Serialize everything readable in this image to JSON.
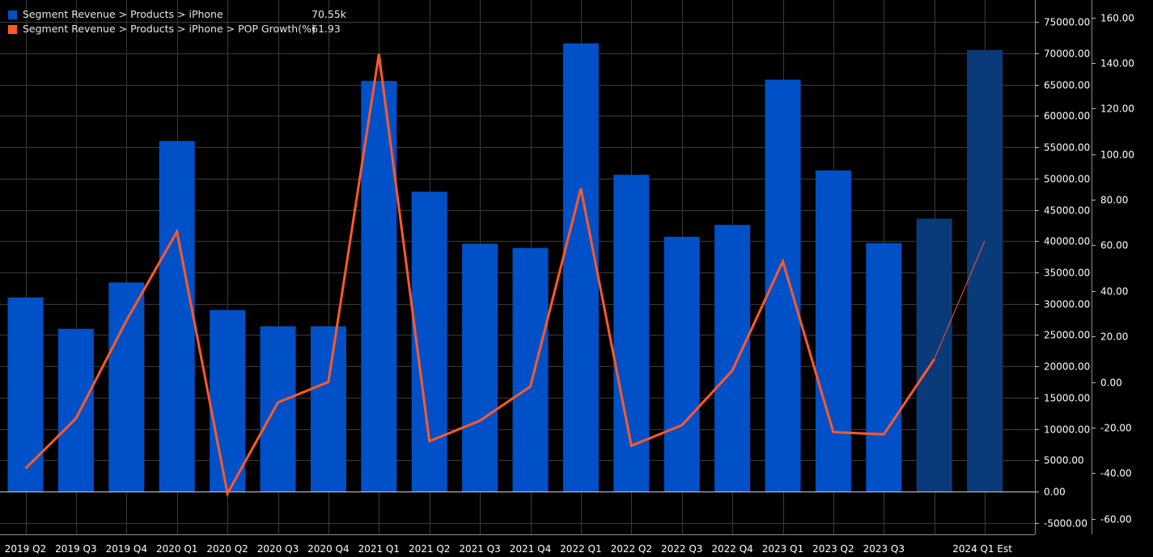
{
  "legend": {
    "items": [
      {
        "label": "Segment Revenue > Products > iPhone",
        "value": "70.55k",
        "color": "#0050c8"
      },
      {
        "label": "Segment Revenue > Products > iPhone > POP Growth(%)",
        "value": "61.93",
        "color": "#ff5a28"
      }
    ]
  },
  "chart_data": {
    "type": "bar",
    "categories": [
      "2019 Q2",
      "2019 Q3",
      "2019 Q4",
      "2020 Q1",
      "2020 Q2",
      "2020 Q3",
      "2020 Q4",
      "2021 Q1",
      "2021 Q2",
      "2021 Q3",
      "2021 Q4",
      "2022 Q1",
      "2022 Q2",
      "2022 Q3",
      "2022 Q4",
      "2023 Q1",
      "2023 Q2",
      "2023 Q3",
      "",
      "2024 Q1 Est"
    ],
    "series": [
      {
        "name": "Segment Revenue > Products > iPhone",
        "type": "bar",
        "axis": "left",
        "color": "#0050c8",
        "estimate_color": "#0a3a7a",
        "estimate_from_index": 18,
        "values": [
          31000,
          26000,
          33400,
          56000,
          29000,
          26400,
          26400,
          65600,
          47900,
          39600,
          38900,
          71600,
          50600,
          40700,
          42600,
          65800,
          51300,
          39700,
          43600,
          70550
        ]
      },
      {
        "name": "Segment Revenue > Products > iPhone > POP Growth(%)",
        "type": "line",
        "axis": "right",
        "color": "#ff5a28",
        "estimate_from_index": 18,
        "values": [
          -38,
          -16,
          27,
          66,
          -49,
          -9,
          0,
          144,
          -26,
          -17,
          -2,
          85,
          -28,
          -19,
          5,
          53,
          -22,
          -23,
          10,
          61.93
        ]
      }
    ],
    "y_left": {
      "ticks": [
        "75000.00",
        "70000.00",
        "65000.00",
        "60000.00",
        "55000.00",
        "50000.00",
        "45000.00",
        "40000.00",
        "35000.00",
        "30000.00",
        "25000.00",
        "20000.00",
        "15000.00",
        "10000.00",
        "5000.00",
        "0.00",
        "-5000.00"
      ],
      "ylim": [
        -7000,
        78000
      ]
    },
    "y_right": {
      "ticks": [
        "160.00",
        "140.00",
        "120.00",
        "100.00",
        "80.00",
        "60.00",
        "40.00",
        "20.00",
        "0.00",
        "-20.00",
        "-40.00",
        "-60.00"
      ],
      "ylim": [
        -64,
        168.6
      ]
    },
    "grid": true
  }
}
